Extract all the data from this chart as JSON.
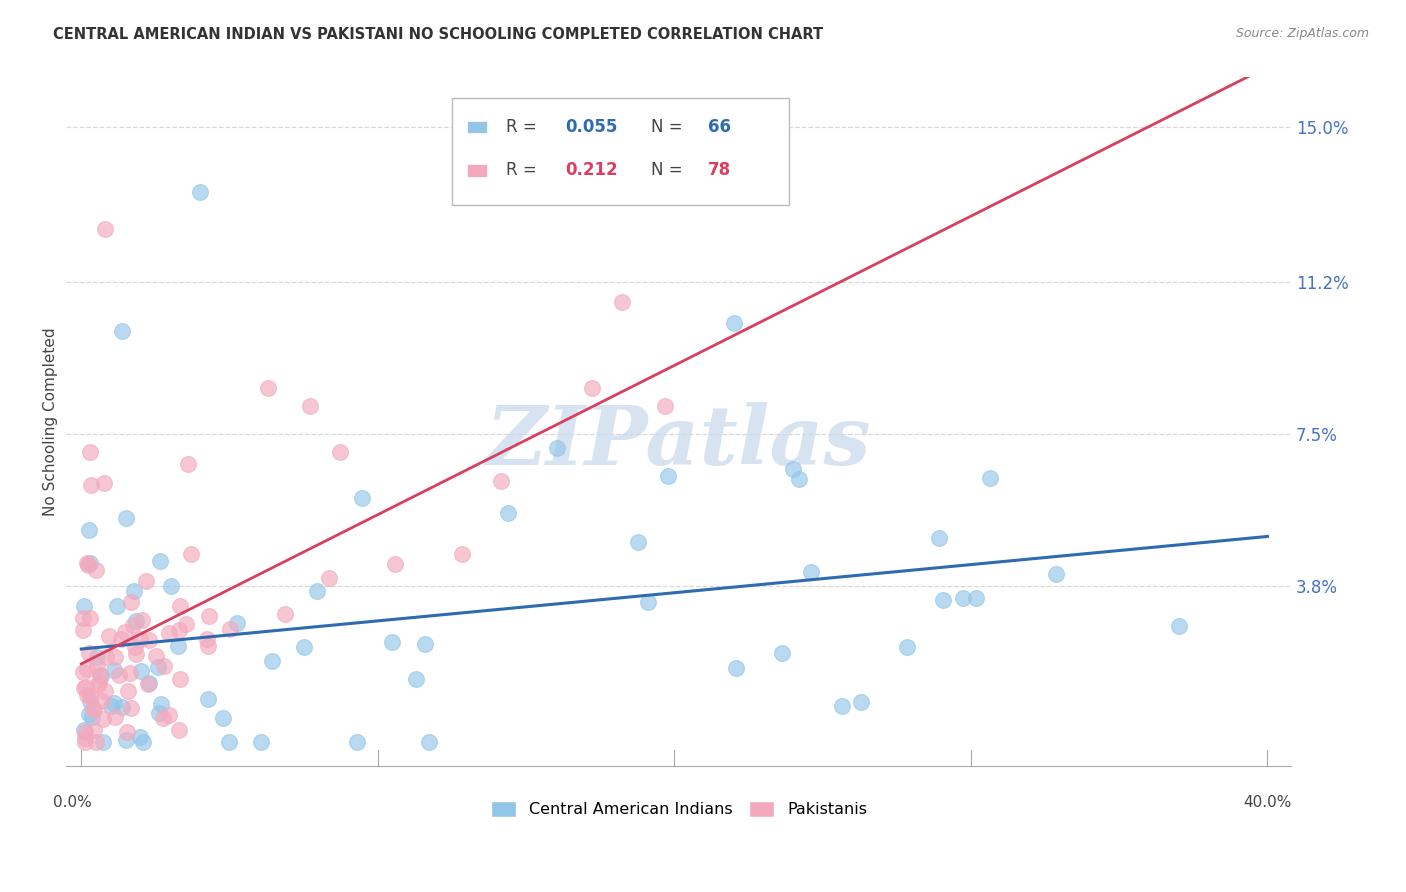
{
  "title": "CENTRAL AMERICAN INDIAN VS PAKISTANI NO SCHOOLING COMPLETED CORRELATION CHART",
  "source": "Source: ZipAtlas.com",
  "ylabel": "No Schooling Completed",
  "ytick_labels": [
    "15.0%",
    "11.2%",
    "7.5%",
    "3.8%"
  ],
  "ytick_values": [
    0.15,
    0.112,
    0.075,
    0.038
  ],
  "xlim": [
    0.0,
    0.4
  ],
  "ylim": [
    0.0,
    0.162
  ],
  "legend_r1": "R = ",
  "legend_v1": "0.055",
  "legend_n1_label": "N = ",
  "legend_n1": "66",
  "legend_r2": "R = ",
  "legend_v2": "0.212",
  "legend_n2_label": "N = ",
  "legend_n2": "78",
  "blue_color": "#92C5E8",
  "pink_color": "#F4A8BC",
  "trend_blue": "#2E6BB0",
  "trend_pink": "#D94060",
  "watermark_color": "#C8D8EC",
  "watermark": "ZIPatlas",
  "axis_color": "#aaaaaa",
  "grid_color": "#d8d8d8",
  "text_color": "#444444",
  "right_tick_color": "#4472C4",
  "legend_box_color": "#dddddd"
}
